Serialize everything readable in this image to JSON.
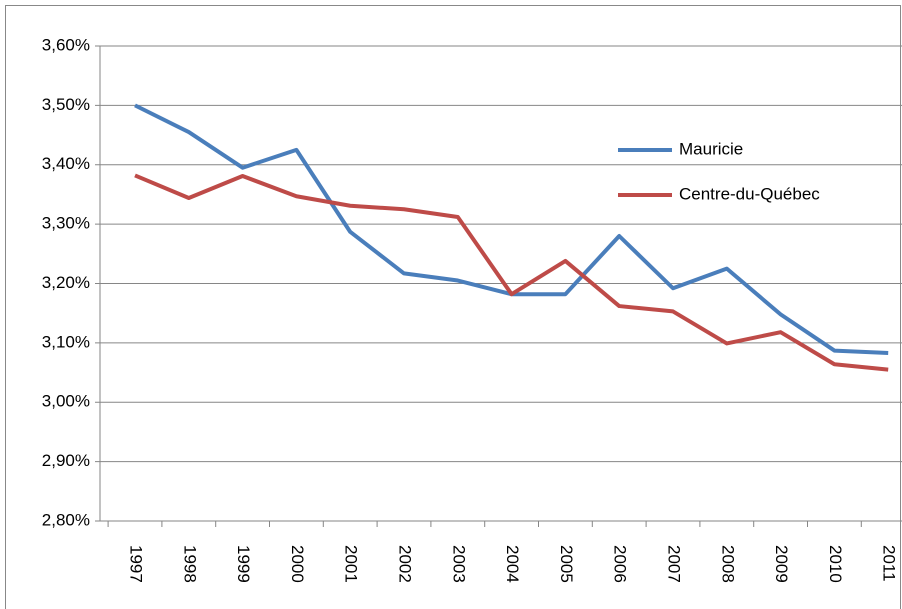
{
  "chart_data": {
    "type": "line",
    "categories": [
      "1997",
      "1998",
      "1999",
      "2000",
      "2001",
      "2002",
      "2003",
      "2004",
      "2005",
      "2006",
      "2007",
      "2008",
      "2009",
      "2010",
      "2011"
    ],
    "series": [
      {
        "name": "Mauricie",
        "color": "#4a7ebb",
        "values": [
          3.5,
          3.455,
          3.395,
          3.425,
          3.287,
          3.217,
          3.205,
          3.182,
          3.182,
          3.28,
          3.192,
          3.225,
          3.148,
          3.087,
          3.083
        ]
      },
      {
        "name": "Centre-du-Québec",
        "color": "#be4b48",
        "values": [
          3.382,
          3.344,
          3.381,
          3.347,
          3.331,
          3.325,
          3.312,
          3.182,
          3.238,
          3.162,
          3.153,
          3.099,
          3.118,
          3.064,
          3.055
        ]
      }
    ],
    "ylim": [
      2.8,
      3.6
    ],
    "yticks": [
      {
        "value": 2.8,
        "label": "2,80%"
      },
      {
        "value": 2.9,
        "label": "2,90%"
      },
      {
        "value": 3.0,
        "label": "3,00%"
      },
      {
        "value": 3.1,
        "label": "3,10%"
      },
      {
        "value": 3.2,
        "label": "3,20%"
      },
      {
        "value": 3.3,
        "label": "3,30%"
      },
      {
        "value": 3.4,
        "label": "3,40%"
      },
      {
        "value": 3.5,
        "label": "3,50%"
      },
      {
        "value": 3.6,
        "label": "3,60%"
      }
    ],
    "grid": true,
    "legend": "right"
  }
}
